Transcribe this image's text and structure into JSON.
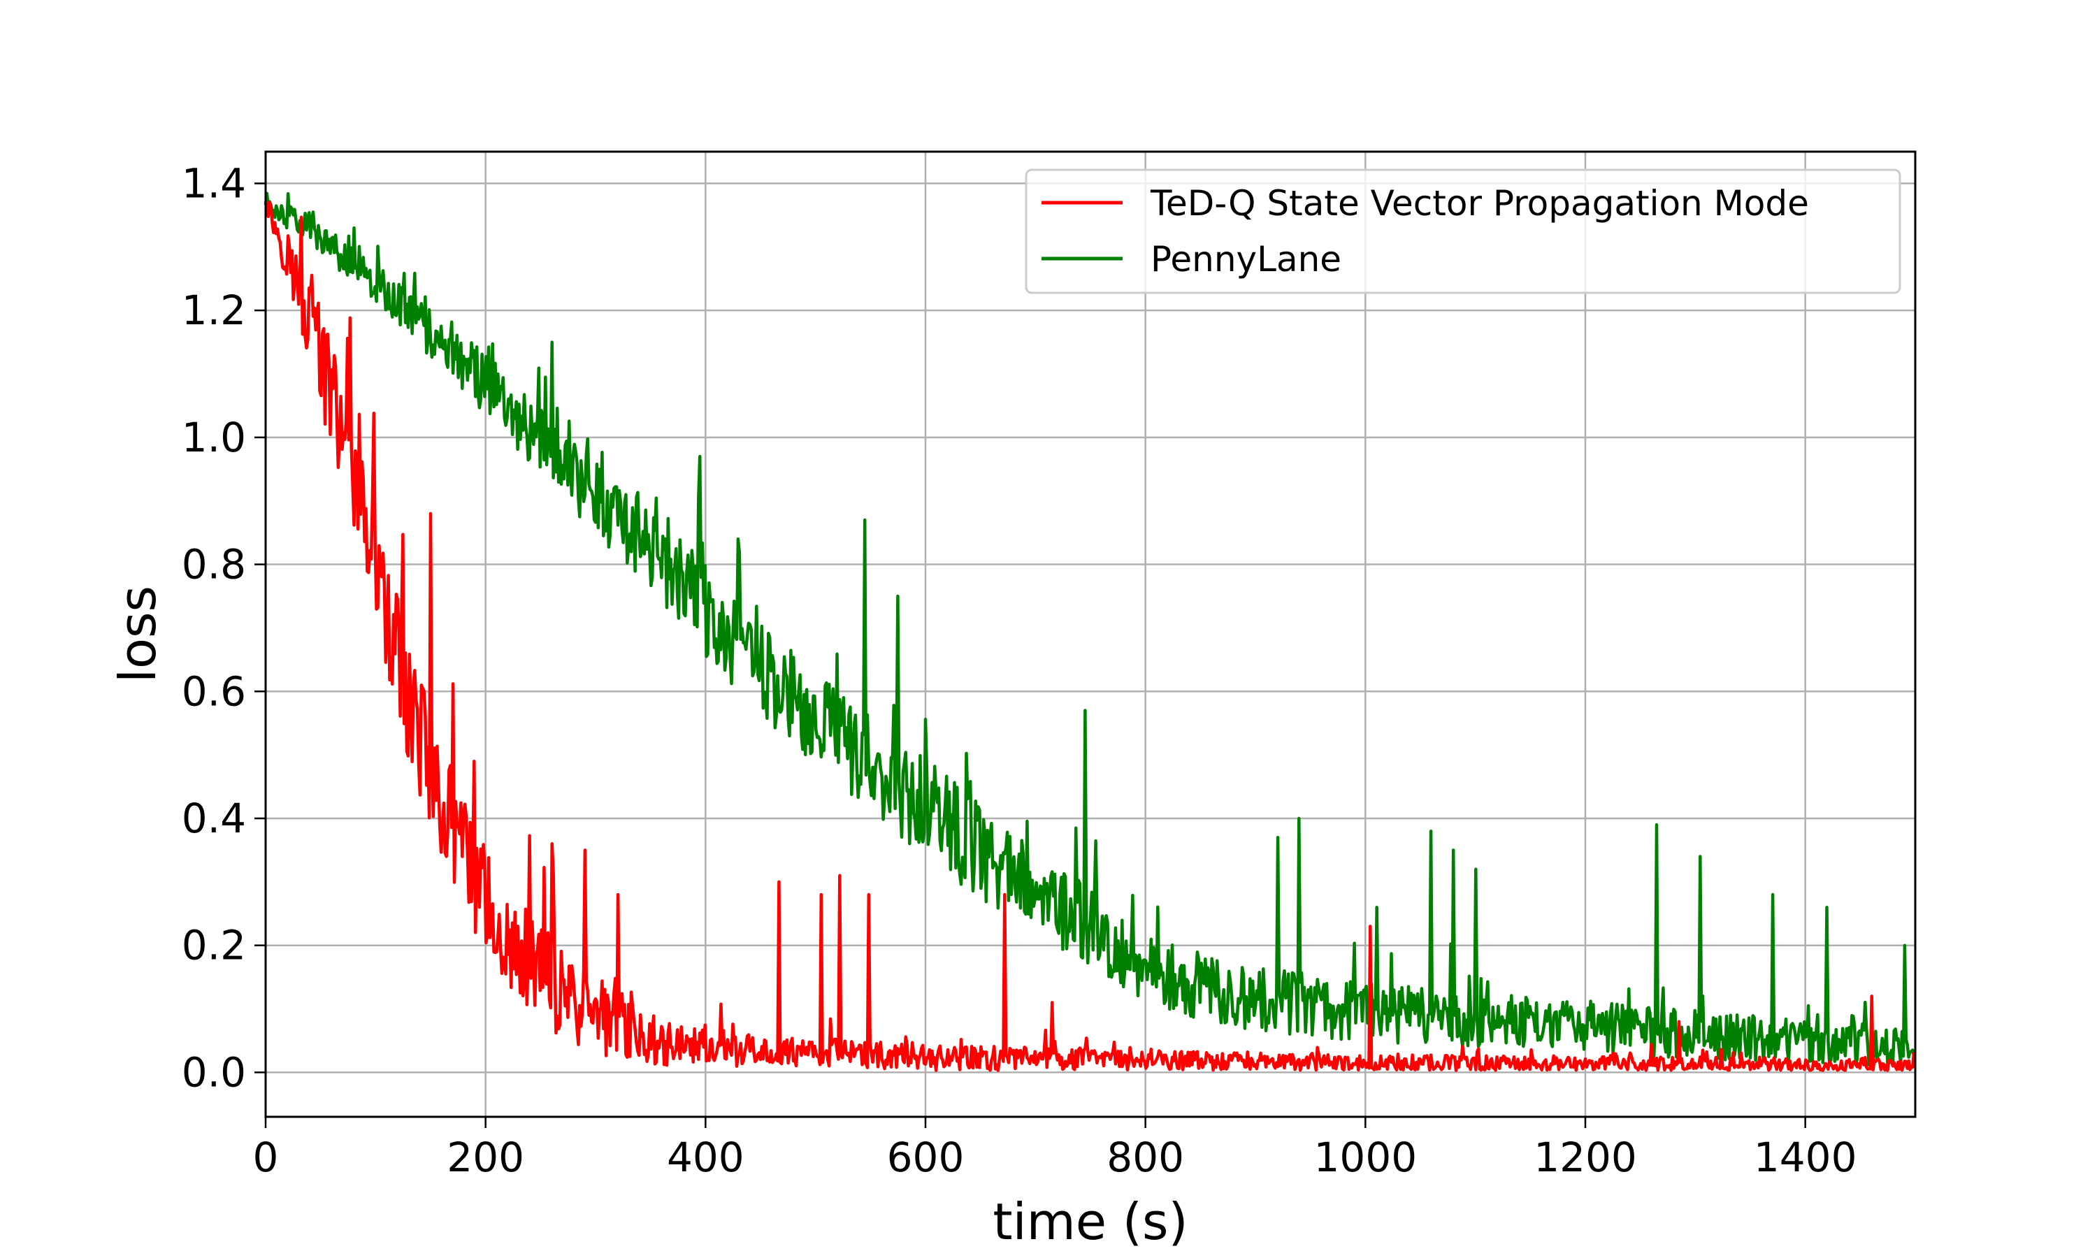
{
  "chart_data": {
    "type": "line",
    "xlabel": "time (s)",
    "ylabel": "loss",
    "xlim": [
      0,
      1500
    ],
    "ylim": [
      -0.07,
      1.45
    ],
    "xticks": [
      0,
      200,
      400,
      600,
      800,
      1000,
      1200,
      1400
    ],
    "yticks": [
      0.0,
      0.2,
      0.4,
      0.6,
      0.8,
      1.0,
      1.2,
      1.4
    ],
    "ytick_labels": [
      "0.0",
      "0.2",
      "0.4",
      "0.6",
      "0.8",
      "1.0",
      "1.2",
      "1.4"
    ],
    "xtick_labels": [
      "0",
      "200",
      "400",
      "600",
      "800",
      "1000",
      "1200",
      "1400"
    ],
    "grid": true,
    "legend_position": "top-right",
    "series": [
      {
        "name": "TeD-Q State Vector Propagation Mode",
        "color": "#ff0000",
        "x": [
          0,
          20,
          40,
          60,
          80,
          100,
          120,
          140,
          160,
          180,
          200,
          220,
          240,
          260,
          280,
          300,
          320,
          340,
          360,
          380,
          400,
          450,
          500,
          550,
          600,
          650,
          700,
          750,
          800,
          900,
          1000,
          1100,
          1200,
          1300,
          1400,
          1500
        ],
        "y": [
          1.37,
          1.28,
          1.18,
          1.05,
          0.93,
          0.78,
          0.64,
          0.52,
          0.42,
          0.33,
          0.26,
          0.2,
          0.16,
          0.13,
          0.1,
          0.08,
          0.065,
          0.055,
          0.045,
          0.04,
          0.035,
          0.03,
          0.03,
          0.025,
          0.02,
          0.02,
          0.02,
          0.02,
          0.018,
          0.015,
          0.013,
          0.012,
          0.011,
          0.01,
          0.01,
          0.01
        ],
        "spikes": [
          [
            150,
            0.88
          ],
          [
            190,
            0.49
          ],
          [
            260,
            0.36
          ],
          [
            290,
            0.35
          ],
          [
            320,
            0.28
          ],
          [
            467,
            0.3
          ],
          [
            505,
            0.28
          ],
          [
            522,
            0.31
          ],
          [
            548,
            0.28
          ],
          [
            672,
            0.28
          ],
          [
            715,
            0.11
          ],
          [
            1005,
            0.23
          ],
          [
            1285,
            0.08
          ],
          [
            1460,
            0.12
          ]
        ],
        "noise_amplitude": [
          [
            0,
            0.02
          ],
          [
            60,
            0.12
          ],
          [
            150,
            0.12
          ],
          [
            250,
            0.1
          ],
          [
            350,
            0.05
          ],
          [
            450,
            0.03
          ],
          [
            800,
            0.02
          ],
          [
            1500,
            0.015
          ]
        ]
      },
      {
        "name": "PennyLane",
        "color": "#008000",
        "x": [
          0,
          50,
          100,
          150,
          200,
          250,
          300,
          350,
          400,
          450,
          500,
          550,
          600,
          650,
          700,
          750,
          800,
          850,
          900,
          950,
          1000,
          1050,
          1100,
          1150,
          1200,
          1250,
          1300,
          1350,
          1400,
          1450,
          1500
        ],
        "y": [
          1.37,
          1.31,
          1.24,
          1.16,
          1.08,
          0.99,
          0.9,
          0.82,
          0.72,
          0.63,
          0.55,
          0.48,
          0.41,
          0.34,
          0.28,
          0.22,
          0.16,
          0.13,
          0.11,
          0.1,
          0.09,
          0.085,
          0.08,
          0.075,
          0.07,
          0.06,
          0.055,
          0.05,
          0.045,
          0.04,
          0.035
        ],
        "spikes": [
          [
            260,
            1.15
          ],
          [
            395,
            0.97
          ],
          [
            430,
            0.84
          ],
          [
            545,
            0.87
          ],
          [
            575,
            0.75
          ],
          [
            745,
            0.57
          ],
          [
            920,
            0.37
          ],
          [
            940,
            0.4
          ],
          [
            1010,
            0.26
          ],
          [
            1060,
            0.38
          ],
          [
            1080,
            0.35
          ],
          [
            1100,
            0.32
          ],
          [
            1265,
            0.39
          ],
          [
            1305,
            0.34
          ],
          [
            1370,
            0.28
          ],
          [
            1420,
            0.26
          ],
          [
            1490,
            0.2
          ]
        ],
        "noise_amplitude": [
          [
            0,
            0.02
          ],
          [
            200,
            0.06
          ],
          [
            400,
            0.09
          ],
          [
            600,
            0.1
          ],
          [
            800,
            0.07
          ],
          [
            1000,
            0.06
          ],
          [
            1500,
            0.04
          ]
        ]
      }
    ]
  }
}
